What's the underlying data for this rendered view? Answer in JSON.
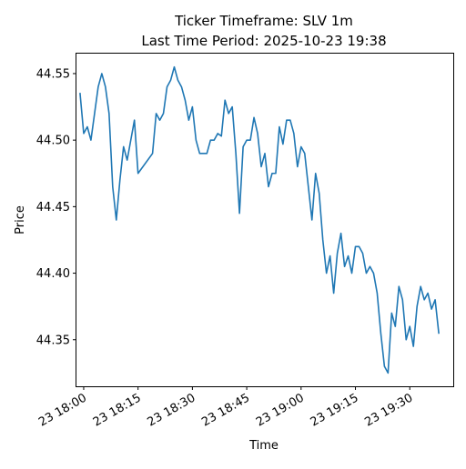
{
  "chart_data": {
    "type": "line",
    "title_line1": "Ticker Timeframe: SLV 1m",
    "title_line2": "Last Time Period: 2025-10-23 19:38",
    "xlabel": "Time",
    "ylabel": "Price",
    "line_color": "#1f77b4",
    "xlim": [
      "2025-10-23 17:58",
      "2025-10-23 19:42"
    ],
    "ylim": [
      44.315,
      44.565
    ],
    "x_ticks": [
      {
        "t": "2025-10-23 18:00",
        "label": "23 18:00"
      },
      {
        "t": "2025-10-23 18:15",
        "label": "23 18:15"
      },
      {
        "t": "2025-10-23 18:30",
        "label": "23 18:30"
      },
      {
        "t": "2025-10-23 18:45",
        "label": "23 18:45"
      },
      {
        "t": "2025-10-23 19:00",
        "label": "23 19:00"
      },
      {
        "t": "2025-10-23 19:15",
        "label": "23 19:15"
      },
      {
        "t": "2025-10-23 19:30",
        "label": "23 19:30"
      }
    ],
    "y_ticks": [
      44.35,
      44.4,
      44.45,
      44.5,
      44.55
    ],
    "y_tick_labels": [
      "44.35",
      "44.40",
      "44.45",
      "44.50",
      "44.55"
    ],
    "series": [
      {
        "x": [
          "2025-10-23 17:59",
          "2025-10-23 18:00",
          "2025-10-23 18:01",
          "2025-10-23 18:02",
          "2025-10-23 18:03",
          "2025-10-23 18:04",
          "2025-10-23 18:05",
          "2025-10-23 18:06",
          "2025-10-23 18:07",
          "2025-10-23 18:08",
          "2025-10-23 18:09",
          "2025-10-23 18:10",
          "2025-10-23 18:11",
          "2025-10-23 18:12",
          "2025-10-23 18:13",
          "2025-10-23 18:14",
          "2025-10-23 18:15",
          "2025-10-23 18:19",
          "2025-10-23 18:20",
          "2025-10-23 18:21",
          "2025-10-23 18:22",
          "2025-10-23 18:23",
          "2025-10-23 18:24",
          "2025-10-23 18:25",
          "2025-10-23 18:26",
          "2025-10-23 18:27",
          "2025-10-23 18:28",
          "2025-10-23 18:29",
          "2025-10-23 18:30",
          "2025-10-23 18:31",
          "2025-10-23 18:32",
          "2025-10-23 18:33",
          "2025-10-23 18:34",
          "2025-10-23 18:35",
          "2025-10-23 18:36",
          "2025-10-23 18:37",
          "2025-10-23 18:38",
          "2025-10-23 18:39",
          "2025-10-23 18:40",
          "2025-10-23 18:41",
          "2025-10-23 18:42",
          "2025-10-23 18:43",
          "2025-10-23 18:44",
          "2025-10-23 18:45",
          "2025-10-23 18:46",
          "2025-10-23 18:47",
          "2025-10-23 18:48",
          "2025-10-23 18:49",
          "2025-10-23 18:50",
          "2025-10-23 18:51",
          "2025-10-23 18:52",
          "2025-10-23 18:53",
          "2025-10-23 18:54",
          "2025-10-23 18:55",
          "2025-10-23 18:56",
          "2025-10-23 18:57",
          "2025-10-23 18:58",
          "2025-10-23 18:59",
          "2025-10-23 19:00",
          "2025-10-23 19:01",
          "2025-10-23 19:02",
          "2025-10-23 19:03",
          "2025-10-23 19:04",
          "2025-10-23 19:05",
          "2025-10-23 19:06",
          "2025-10-23 19:07",
          "2025-10-23 19:08",
          "2025-10-23 19:09",
          "2025-10-23 19:10",
          "2025-10-23 19:11",
          "2025-10-23 19:12",
          "2025-10-23 19:13",
          "2025-10-23 19:14",
          "2025-10-23 19:15",
          "2025-10-23 19:16",
          "2025-10-23 19:17",
          "2025-10-23 19:18",
          "2025-10-23 19:19",
          "2025-10-23 19:20",
          "2025-10-23 19:21",
          "2025-10-23 19:22",
          "2025-10-23 19:23",
          "2025-10-23 19:24",
          "2025-10-23 19:25",
          "2025-10-23 19:26",
          "2025-10-23 19:27",
          "2025-10-23 19:28",
          "2025-10-23 19:29",
          "2025-10-23 19:30",
          "2025-10-23 19:31",
          "2025-10-23 19:32",
          "2025-10-23 19:33",
          "2025-10-23 19:34",
          "2025-10-23 19:35",
          "2025-10-23 19:36",
          "2025-10-23 19:37",
          "2025-10-23 19:38"
        ],
        "y": [
          44.535,
          44.505,
          44.51,
          44.5,
          44.52,
          44.54,
          44.55,
          44.54,
          44.52,
          44.465,
          44.44,
          44.47,
          44.495,
          44.485,
          44.5,
          44.515,
          44.475,
          44.49,
          44.52,
          44.515,
          44.52,
          44.54,
          44.545,
          44.555,
          44.545,
          44.54,
          44.53,
          44.515,
          44.525,
          44.5,
          44.49,
          44.49,
          44.49,
          44.5,
          44.5,
          44.505,
          44.503,
          44.53,
          44.52,
          44.525,
          44.49,
          44.445,
          44.495,
          44.5,
          44.5,
          44.517,
          44.505,
          44.48,
          44.49,
          44.465,
          44.475,
          44.475,
          44.51,
          44.497,
          44.515,
          44.515,
          44.505,
          44.48,
          44.495,
          44.49,
          44.465,
          44.44,
          44.475,
          44.46,
          44.425,
          44.4,
          44.413,
          44.385,
          44.415,
          44.43,
          44.405,
          44.413,
          44.4,
          44.42,
          44.42,
          44.415,
          44.4,
          44.405,
          44.4,
          44.385,
          44.355,
          44.33,
          44.325,
          44.37,
          44.36,
          44.39,
          44.38,
          44.35,
          44.36,
          44.345,
          44.375,
          44.39,
          44.38,
          44.385,
          44.373,
          44.38,
          44.355
        ]
      }
    ]
  }
}
